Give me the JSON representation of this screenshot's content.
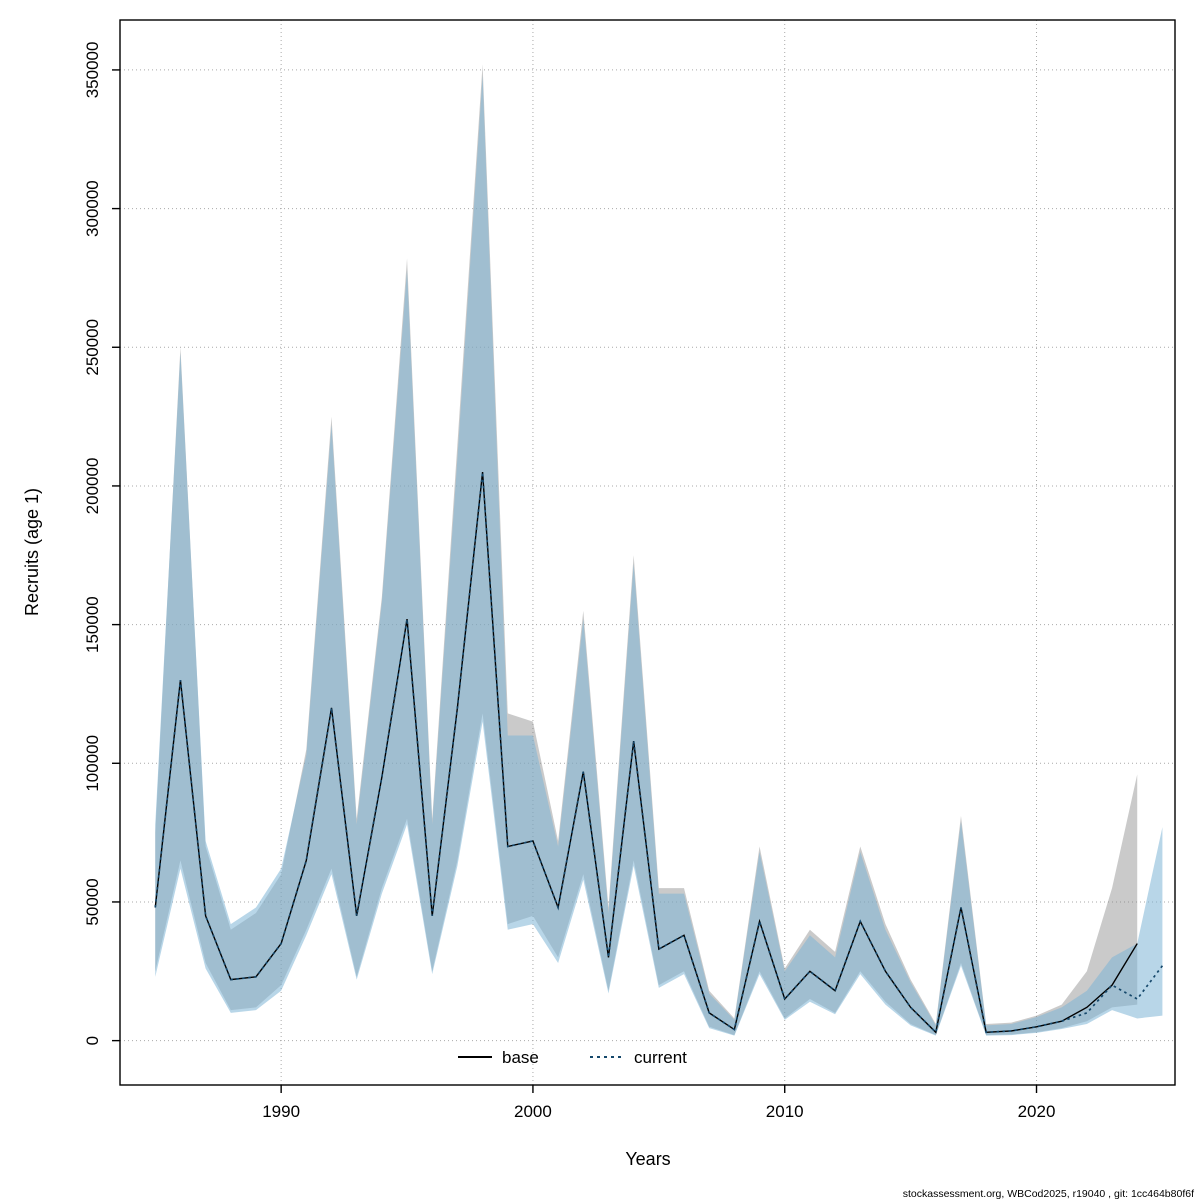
{
  "figure": {
    "footer": "stockassessment.org, WBCod2025, r19040 , git: 1cc464b80f6f"
  },
  "chart_data": {
    "type": "line",
    "title": "",
    "xlabel": "Years",
    "ylabel": "Recruits (age 1)",
    "xlim": [
      1985,
      2025
    ],
    "ylim": [
      0,
      350000
    ],
    "x_ticks": [
      1990,
      2000,
      2010,
      2020
    ],
    "y_ticks": [
      0,
      50000,
      100000,
      150000,
      200000,
      250000,
      300000,
      350000
    ],
    "grid": true,
    "legend_position": "bottom-center-inside",
    "series": [
      {
        "name": "base",
        "line_style": "solid",
        "line_color": "#000000",
        "band_color": "rgba(128,128,128,0.42)",
        "years": [
          1985,
          1986,
          1987,
          1988,
          1989,
          1990,
          1991,
          1992,
          1993,
          1994,
          1995,
          1996,
          1997,
          1998,
          1999,
          2000,
          2001,
          2002,
          2003,
          2004,
          2005,
          2006,
          2007,
          2008,
          2009,
          2010,
          2011,
          2012,
          2013,
          2014,
          2015,
          2016,
          2017,
          2018,
          2019,
          2020,
          2021,
          2022,
          2023,
          2024
        ],
        "median": [
          48000,
          130000,
          45000,
          22000,
          23000,
          35000,
          65000,
          120000,
          45000,
          95000,
          152000,
          45000,
          120000,
          205000,
          70000,
          72000,
          48000,
          97000,
          30000,
          108000,
          33000,
          38000,
          10000,
          4000,
          43000,
          15000,
          25000,
          18000,
          43000,
          25000,
          12000,
          3000,
          48000,
          3000,
          3500,
          5000,
          7000,
          12000,
          20000,
          35000
        ],
        "ci_low": [
          25000,
          65000,
          28000,
          11000,
          12000,
          20000,
          40000,
          62000,
          23000,
          55000,
          80000,
          25000,
          65000,
          118000,
          42000,
          45000,
          30000,
          60000,
          18000,
          65000,
          20000,
          25000,
          5000,
          2000,
          25000,
          8000,
          15000,
          10000,
          25000,
          14000,
          6000,
          2000,
          28000,
          2000,
          2200,
          3000,
          4500,
          7000,
          12000,
          13000
        ],
        "ci_high": [
          75000,
          250000,
          70000,
          40000,
          46000,
          60000,
          105000,
          225000,
          80000,
          160000,
          282000,
          80000,
          215000,
          352000,
          118000,
          115000,
          72000,
          155000,
          48000,
          175000,
          55000,
          55000,
          18000,
          8000,
          70000,
          26000,
          40000,
          32000,
          70000,
          42000,
          22000,
          6000,
          81000,
          6000,
          6500,
          9000,
          13000,
          25000,
          55000,
          96000
        ]
      },
      {
        "name": "current",
        "line_style": "dotted",
        "line_color": "#15486b",
        "band_color": "rgba(125,180,214,0.55)",
        "years": [
          1985,
          1986,
          1987,
          1988,
          1989,
          1990,
          1991,
          1992,
          1993,
          1994,
          1995,
          1996,
          1997,
          1998,
          1999,
          2000,
          2001,
          2002,
          2003,
          2004,
          2005,
          2006,
          2007,
          2008,
          2009,
          2010,
          2011,
          2012,
          2013,
          2014,
          2015,
          2016,
          2017,
          2018,
          2019,
          2020,
          2021,
          2022,
          2023,
          2024,
          2025
        ],
        "median": [
          48000,
          130000,
          45000,
          22000,
          23000,
          35000,
          65000,
          120000,
          45000,
          95000,
          152000,
          45000,
          120000,
          205000,
          70000,
          72000,
          48000,
          97000,
          30000,
          108000,
          33000,
          38000,
          10000,
          4000,
          43000,
          15000,
          25000,
          18000,
          43000,
          25000,
          12000,
          3000,
          48000,
          3000,
          3500,
          5000,
          7000,
          10000,
          20000,
          15000,
          27000
        ],
        "ci_low": [
          23000,
          62000,
          26000,
          10000,
          11000,
          18000,
          38000,
          60000,
          22000,
          53000,
          78000,
          24000,
          63000,
          115000,
          40000,
          42000,
          28000,
          58000,
          17000,
          63000,
          19000,
          24000,
          4500,
          1800,
          24000,
          7500,
          14000,
          9500,
          24000,
          13000,
          5500,
          1800,
          27000,
          1800,
          2000,
          2800,
          4200,
          6000,
          11000,
          8000,
          9000
        ],
        "ci_high": [
          78000,
          248000,
          72000,
          42000,
          48000,
          62000,
          103000,
          222000,
          78000,
          158000,
          278000,
          78000,
          210000,
          348000,
          110000,
          110000,
          70000,
          152000,
          46000,
          172000,
          53000,
          53000,
          17000,
          7500,
          68000,
          25000,
          38000,
          30000,
          68000,
          40000,
          21000,
          5500,
          79000,
          5500,
          6000,
          8500,
          12000,
          18000,
          30000,
          35000,
          77000
        ]
      }
    ]
  }
}
